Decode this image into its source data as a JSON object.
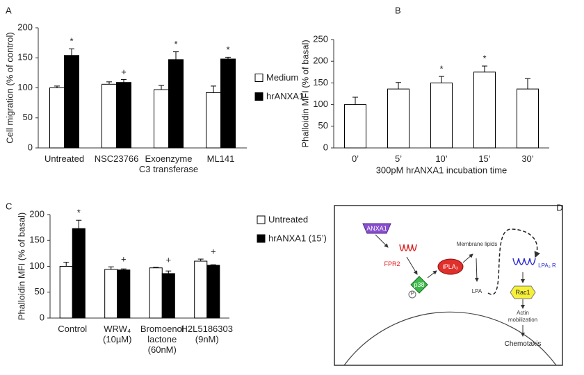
{
  "chart_data": [
    {
      "type": "bar",
      "panel_label": "A",
      "ylabel": "Cell migration (% of control)",
      "categories": [
        "Untreated",
        "NSC23766",
        "Exoenzyme\nC3 transferase",
        "ML141"
      ],
      "series": [
        {
          "name": "Medium",
          "color": "#ffffff",
          "values": [
            100,
            106,
            97,
            92
          ],
          "errors": [
            3,
            4,
            7,
            11
          ]
        },
        {
          "name": "hrANXA1",
          "color": "#000000",
          "values": [
            154,
            109,
            147,
            148
          ],
          "errors": [
            11,
            5,
            13,
            3
          ]
        }
      ],
      "annotations": [
        "*",
        "+",
        "*",
        "*"
      ],
      "ylim": [
        0,
        200
      ],
      "yticks": [
        0,
        50,
        100,
        150,
        200
      ],
      "legend": "right"
    },
    {
      "type": "bar",
      "panel_label": "B",
      "ylabel": "Phalloidin MFI (% of basal)",
      "xlabel": "300pM hrANXA1 incubation time",
      "categories": [
        "0’",
        "5’",
        "10’",
        "15’",
        "30’"
      ],
      "values": [
        100,
        136,
        150,
        175,
        136
      ],
      "errors": [
        17,
        15,
        15,
        14,
        24
      ],
      "color": "#ffffff",
      "annotations": [
        null,
        null,
        "*",
        "*",
        null
      ],
      "ylim": [
        0,
        250
      ],
      "yticks": [
        0,
        50,
        100,
        150,
        200,
        250
      ]
    },
    {
      "type": "bar",
      "panel_label": "C",
      "ylabel": "Phalloidin MFI (% of basal)",
      "categories": [
        "Control",
        "WRW₄\n(10µM)",
        "Bromoenol\nlactone\n(60nM)",
        "H2L5186303\n(9nM)"
      ],
      "series": [
        {
          "name": "Untreated",
          "color": "#ffffff",
          "values": [
            100,
            94,
            97,
            110
          ],
          "errors": [
            8,
            5,
            1,
            4
          ]
        },
        {
          "name": "hrANXA1 (15’)",
          "color": "#000000",
          "values": [
            173,
            93,
            86,
            102
          ],
          "errors": [
            16,
            2,
            5,
            1
          ]
        }
      ],
      "annotations": [
        "*",
        "+",
        "+",
        "+"
      ],
      "ylim": [
        0,
        200
      ],
      "yticks": [
        0,
        50,
        100,
        150,
        200
      ],
      "legend": "upper right"
    }
  ],
  "diagram": {
    "panel_label": "D",
    "nodes": [
      {
        "label": "ANXA1"
      },
      {
        "label": "FPR2"
      },
      {
        "label": "p38"
      },
      {
        "label": "P"
      },
      {
        "label": "iPLA₂"
      },
      {
        "label": "Membrane lipids"
      },
      {
        "label": "LPA"
      },
      {
        "label": "LPA₂ R"
      },
      {
        "label": "Rac1"
      },
      {
        "label": "Actin\nmobilization"
      },
      {
        "label": "Chemotaxis"
      }
    ]
  }
}
